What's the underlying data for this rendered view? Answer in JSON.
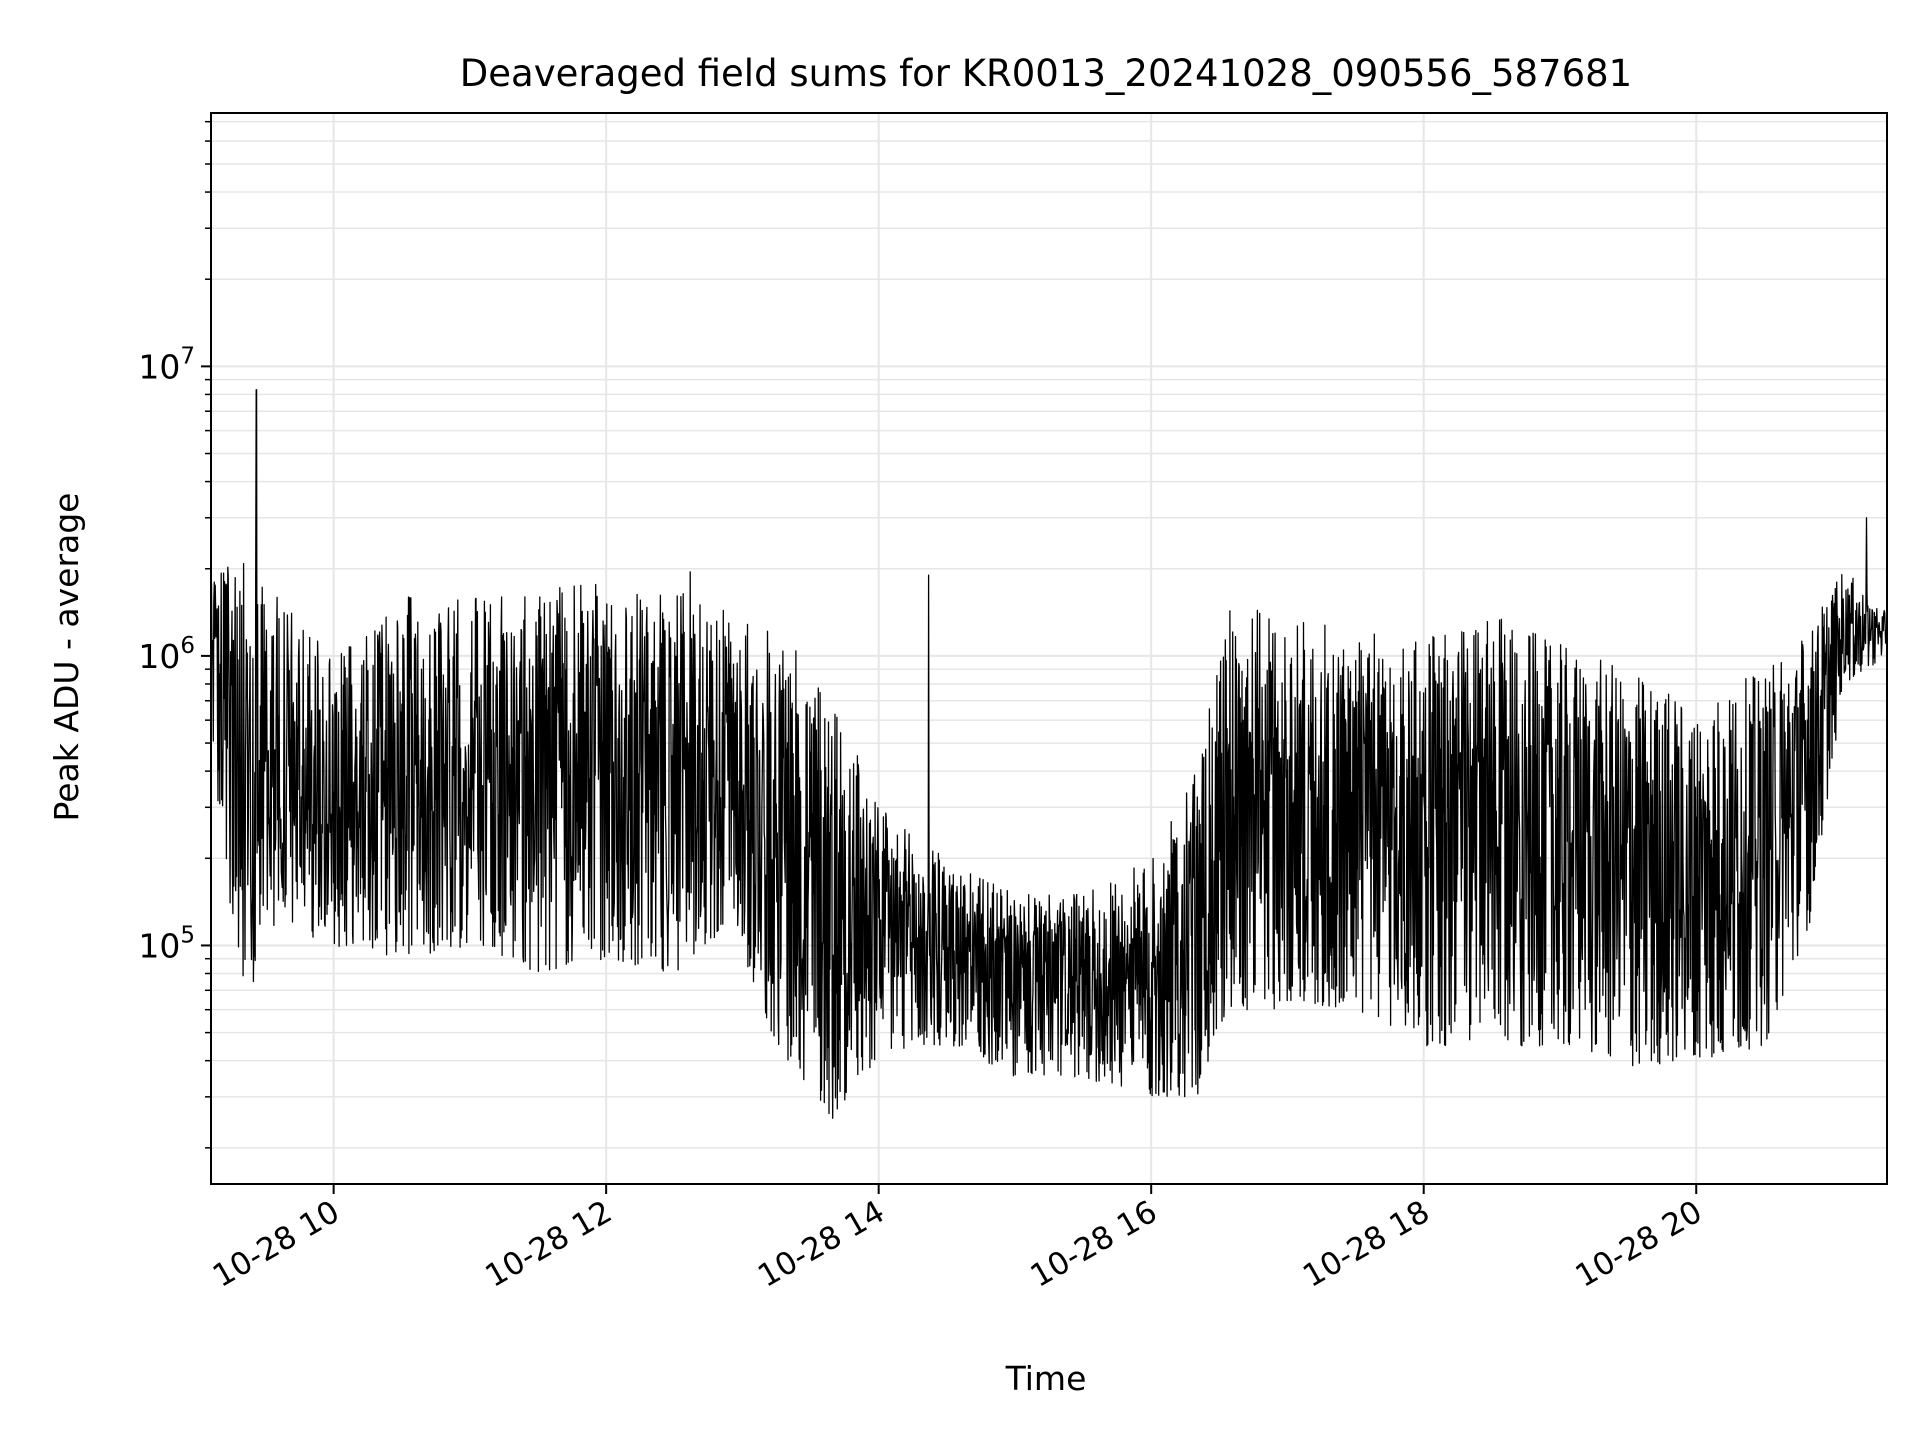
{
  "chart_data": {
    "type": "line",
    "title": "Deaveraged field sums for KR0013_20241028_090556_587681",
    "xlabel": "Time",
    "ylabel": "Peak ADU - average",
    "yscale": "log",
    "grid": true,
    "line_color": "#000000",
    "grid_color": "#e6e6e6",
    "xlim": [
      "2024-10-28 09:06",
      "2024-10-28 21:24"
    ],
    "ylim": [
      15000,
      75000000
    ],
    "x_ticks": [
      {
        "value": "2024-10-28 10:00",
        "label": "10-28 10"
      },
      {
        "value": "2024-10-28 12:00",
        "label": "10-28 12"
      },
      {
        "value": "2024-10-28 14:00",
        "label": "10-28 14"
      },
      {
        "value": "2024-10-28 16:00",
        "label": "10-28 16"
      },
      {
        "value": "2024-10-28 18:00",
        "label": "10-28 18"
      },
      {
        "value": "2024-10-28 20:00",
        "label": "10-28 20"
      }
    ],
    "y_ticks": [
      {
        "value": 100000,
        "base": "10",
        "exp": "5"
      },
      {
        "value": 1000000,
        "base": "10",
        "exp": "6"
      },
      {
        "value": 10000000,
        "base": "10",
        "exp": "7"
      }
    ],
    "series": [
      {
        "envelope": [
          {
            "t": "2024-10-28 09:06",
            "low": 500000,
            "high": 1800000
          },
          {
            "t": "2024-10-28 09:20",
            "low": 60000,
            "high": 2300000
          },
          {
            "t": "2024-10-28 09:35",
            "low": 120000,
            "high": 1600000
          },
          {
            "t": "2024-10-28 10:00",
            "low": 100000,
            "high": 1000000
          },
          {
            "t": "2024-10-28 10:30",
            "low": 90000,
            "high": 1600000
          },
          {
            "t": "2024-10-28 11:00",
            "low": 100000,
            "high": 1600000
          },
          {
            "t": "2024-10-28 11:30",
            "low": 80000,
            "high": 1700000
          },
          {
            "t": "2024-10-28 12:00",
            "low": 90000,
            "high": 1800000
          },
          {
            "t": "2024-10-28 12:30",
            "low": 80000,
            "high": 1700000
          },
          {
            "t": "2024-10-28 12:55",
            "low": 120000,
            "high": 1400000
          },
          {
            "t": "2024-10-28 13:15",
            "low": 45000,
            "high": 1200000
          },
          {
            "t": "2024-10-28 13:40",
            "low": 25000,
            "high": 800000
          },
          {
            "t": "2024-10-28 14:00",
            "low": 40000,
            "high": 300000
          },
          {
            "t": "2024-10-28 14:30",
            "low": 45000,
            "high": 200000
          },
          {
            "t": "2024-10-28 15:00",
            "low": 35000,
            "high": 150000
          },
          {
            "t": "2024-10-28 15:30",
            "low": 35000,
            "high": 150000
          },
          {
            "t": "2024-10-28 16:00",
            "low": 30000,
            "high": 200000
          },
          {
            "t": "2024-10-28 16:20",
            "low": 30000,
            "high": 400000
          },
          {
            "t": "2024-10-28 16:35",
            "low": 60000,
            "high": 1500000
          },
          {
            "t": "2024-10-28 17:00",
            "low": 60000,
            "high": 1400000
          },
          {
            "t": "2024-10-28 17:30",
            "low": 60000,
            "high": 1200000
          },
          {
            "t": "2024-10-28 18:00",
            "low": 45000,
            "high": 1200000
          },
          {
            "t": "2024-10-28 18:30",
            "low": 45000,
            "high": 1400000
          },
          {
            "t": "2024-10-28 19:00",
            "low": 45000,
            "high": 1100000
          },
          {
            "t": "2024-10-28 19:30",
            "low": 38000,
            "high": 900000
          },
          {
            "t": "2024-10-28 20:00",
            "low": 40000,
            "high": 700000
          },
          {
            "t": "2024-10-28 20:30",
            "low": 45000,
            "high": 900000
          },
          {
            "t": "2024-10-28 20:50",
            "low": 120000,
            "high": 1300000
          },
          {
            "t": "2024-10-28 21:05",
            "low": 800000,
            "high": 2000000
          },
          {
            "t": "2024-10-28 21:24",
            "low": 1000000,
            "high": 1400000
          }
        ],
        "peaks": [
          {
            "t": "2024-10-28 09:26",
            "value": 8300000
          },
          {
            "t": "2024-10-28 21:15",
            "value": 3000000
          },
          {
            "t": "2024-10-28 14:22",
            "value": 1900000
          },
          {
            "t": "2024-10-28 12:37",
            "value": 1950000
          }
        ]
      }
    ]
  }
}
